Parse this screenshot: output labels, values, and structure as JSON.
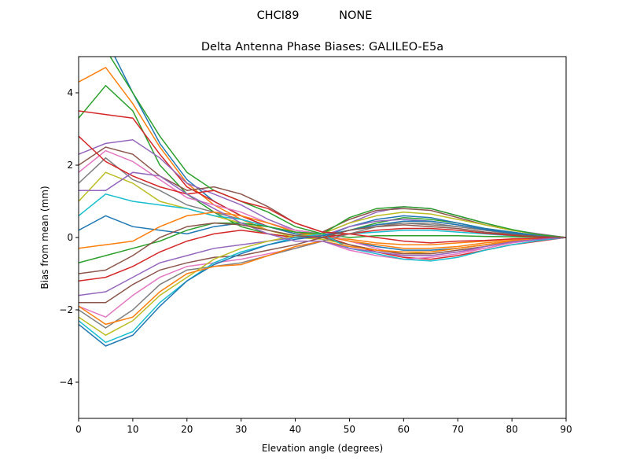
{
  "chart_data": {
    "type": "line",
    "suptitle": "CHCI89           NONE",
    "title": "Delta Antenna Phase Biases: GALILEO-E5a",
    "xlabel": "Elevation angle (degrees)",
    "ylabel": "Bias from mean (mm)",
    "xlim": [
      0,
      90
    ],
    "ylim": [
      -5,
      5
    ],
    "xticks": [
      0,
      10,
      20,
      30,
      40,
      50,
      60,
      70,
      80,
      90
    ],
    "yticks": [
      -4,
      -2,
      0,
      2,
      4
    ],
    "ytick_labels": [
      "−4",
      "−2",
      "0",
      "2",
      "4"
    ],
    "grid": false,
    "colors": [
      "#1f77b4",
      "#ff7f0e",
      "#2ca02c",
      "#d62728",
      "#9467bd",
      "#8c564b",
      "#e377c2",
      "#7f7f7f",
      "#bcbd22",
      "#17becf"
    ],
    "x": [
      0,
      5,
      10,
      15,
      20,
      25,
      30,
      35,
      40,
      45,
      50,
      55,
      60,
      65,
      70,
      75,
      80,
      85,
      90
    ],
    "series": [
      {
        "values": [
          6.5,
          5.5,
          4.0,
          2.6,
          1.6,
          1.0,
          0.6,
          0.3,
          0.1,
          0.05,
          -0.1,
          -0.25,
          -0.35,
          -0.35,
          -0.3,
          -0.2,
          -0.1,
          -0.05,
          0
        ]
      },
      {
        "values": [
          4.3,
          4.7,
          3.7,
          2.5,
          1.5,
          0.9,
          0.5,
          0.2,
          0.05,
          0.0,
          -0.05,
          -0.15,
          -0.2,
          -0.2,
          -0.15,
          -0.1,
          -0.05,
          -0.02,
          0
        ]
      },
      {
        "values": [
          3.3,
          4.2,
          3.5,
          2.0,
          1.2,
          0.7,
          0.3,
          0.1,
          0.0,
          0.05,
          0.2,
          0.4,
          0.55,
          0.5,
          0.4,
          0.25,
          0.15,
          0.05,
          0
        ]
      },
      {
        "values": [
          3.5,
          3.4,
          3.3,
          2.3,
          1.4,
          1.0,
          0.6,
          0.3,
          0.1,
          0.05,
          -0.2,
          -0.4,
          -0.55,
          -0.6,
          -0.5,
          -0.35,
          -0.2,
          -0.1,
          0
        ]
      },
      {
        "values": [
          2.3,
          2.6,
          2.7,
          2.2,
          1.5,
          1.2,
          0.9,
          0.5,
          0.2,
          0.1,
          0.4,
          0.7,
          0.85,
          0.8,
          0.6,
          0.4,
          0.2,
          0.1,
          0
        ]
      },
      {
        "values": [
          2.0,
          2.5,
          2.3,
          1.7,
          1.3,
          1.4,
          1.2,
          0.85,
          0.4,
          0.15,
          0.5,
          0.75,
          0.8,
          0.75,
          0.55,
          0.35,
          0.2,
          0.08,
          0
        ]
      },
      {
        "values": [
          1.8,
          2.4,
          2.1,
          1.6,
          1.1,
          0.9,
          0.7,
          0.4,
          0.2,
          0.1,
          -0.1,
          -0.3,
          -0.5,
          -0.5,
          -0.4,
          -0.3,
          -0.15,
          -0.05,
          0
        ]
      },
      {
        "values": [
          1.5,
          2.2,
          1.6,
          1.3,
          0.9,
          0.7,
          0.5,
          0.3,
          0.1,
          0.0,
          0.2,
          0.35,
          0.4,
          0.4,
          0.3,
          0.2,
          0.1,
          0.05,
          0
        ]
      },
      {
        "values": [
          1.0,
          1.8,
          1.5,
          1.0,
          0.8,
          0.6,
          0.4,
          0.2,
          0.0,
          -0.05,
          -0.2,
          -0.35,
          -0.45,
          -0.4,
          -0.3,
          -0.2,
          -0.1,
          -0.05,
          0
        ]
      },
      {
        "values": [
          0.6,
          1.2,
          1.0,
          0.9,
          0.8,
          0.6,
          0.5,
          0.3,
          0.15,
          0.1,
          0.1,
          0.15,
          0.2,
          0.2,
          0.15,
          0.1,
          0.05,
          0.02,
          0
        ]
      },
      {
        "values": [
          0.2,
          0.6,
          0.3,
          0.2,
          0.1,
          0.3,
          0.4,
          0.3,
          0.1,
          0.0,
          0.3,
          0.5,
          0.6,
          0.55,
          0.4,
          0.25,
          0.15,
          0.05,
          0
        ]
      },
      {
        "values": [
          -0.3,
          -0.2,
          -0.1,
          0.3,
          0.6,
          0.7,
          0.6,
          0.4,
          0.15,
          0.05,
          -0.1,
          -0.2,
          -0.3,
          -0.3,
          -0.25,
          -0.15,
          -0.08,
          -0.03,
          0
        ]
      },
      {
        "values": [
          -0.7,
          -0.5,
          -0.3,
          -0.1,
          0.2,
          0.4,
          0.4,
          0.3,
          0.15,
          0.1,
          0.0,
          0.05,
          0.05,
          0.05,
          0.05,
          0.03,
          0.02,
          0.01,
          0
        ]
      },
      {
        "values": [
          -1.2,
          -1.1,
          -0.8,
          -0.4,
          -0.1,
          0.1,
          0.2,
          0.1,
          0.0,
          0.0,
          0.1,
          0.2,
          0.25,
          0.25,
          0.2,
          0.12,
          0.06,
          0.02,
          0
        ]
      },
      {
        "values": [
          -1.6,
          -1.5,
          -1.1,
          -0.7,
          -0.5,
          -0.3,
          -0.2,
          -0.1,
          0.0,
          0.05,
          0.3,
          0.45,
          0.5,
          0.45,
          0.35,
          0.22,
          0.1,
          0.04,
          0
        ]
      },
      {
        "values": [
          -1.8,
          -1.8,
          -1.3,
          -0.9,
          -0.7,
          -0.55,
          -0.5,
          -0.35,
          -0.2,
          0.0,
          -0.2,
          -0.35,
          -0.45,
          -0.45,
          -0.35,
          -0.25,
          -0.12,
          -0.05,
          0
        ]
      },
      {
        "values": [
          -1.9,
          -2.2,
          -1.6,
          -1.1,
          -0.8,
          -0.7,
          -0.6,
          -0.45,
          -0.3,
          -0.1,
          -0.35,
          -0.5,
          -0.6,
          -0.55,
          -0.45,
          -0.3,
          -0.15,
          -0.05,
          0
        ]
      },
      {
        "values": [
          -2.0,
          -2.5,
          -2.0,
          -1.3,
          -0.9,
          -0.8,
          -0.7,
          -0.5,
          -0.3,
          -0.1,
          0.1,
          0.3,
          0.4,
          0.35,
          0.3,
          0.2,
          0.1,
          0.04,
          0
        ]
      },
      {
        "values": [
          -2.2,
          -2.7,
          -2.3,
          -1.6,
          -1.1,
          -0.6,
          -0.3,
          -0.1,
          0.05,
          0.1,
          0.4,
          0.6,
          0.7,
          0.65,
          0.5,
          0.35,
          0.2,
          0.08,
          0
        ]
      },
      {
        "values": [
          -2.3,
          -2.9,
          -2.6,
          -1.8,
          -1.2,
          -0.7,
          -0.4,
          -0.2,
          0.0,
          0.1,
          -0.3,
          -0.45,
          -0.6,
          -0.65,
          -0.55,
          -0.35,
          -0.2,
          -0.08,
          0
        ]
      },
      {
        "values": [
          -2.4,
          -3.0,
          -2.7,
          -1.9,
          -1.2,
          -0.75,
          -0.45,
          -0.2,
          -0.05,
          0.05,
          0.2,
          0.35,
          0.45,
          0.45,
          0.35,
          0.22,
          0.12,
          0.04,
          0
        ]
      },
      {
        "values": [
          -1.9,
          -2.4,
          -2.2,
          -1.5,
          -1.0,
          -0.8,
          -0.75,
          -0.5,
          -0.25,
          -0.1,
          -0.25,
          -0.35,
          -0.4,
          -0.4,
          -0.3,
          -0.2,
          -0.1,
          -0.04,
          0
        ]
      },
      {
        "values": [
          5.0,
          5.2,
          4.0,
          2.8,
          1.8,
          1.3,
          1.0,
          0.7,
          0.3,
          0.1,
          0.55,
          0.8,
          0.85,
          0.8,
          0.6,
          0.4,
          0.22,
          0.08,
          0
        ]
      },
      {
        "values": [
          2.8,
          2.1,
          1.7,
          1.4,
          1.2,
          1.3,
          1.0,
          0.8,
          0.4,
          0.15,
          0.1,
          0.0,
          -0.1,
          -0.15,
          -0.1,
          -0.08,
          -0.04,
          -0.02,
          0
        ]
      },
      {
        "values": [
          1.3,
          1.3,
          1.8,
          1.7,
          1.2,
          0.8,
          0.4,
          0.1,
          -0.1,
          -0.1,
          -0.3,
          -0.4,
          -0.5,
          -0.5,
          -0.4,
          -0.25,
          -0.12,
          -0.05,
          0
        ]
      },
      {
        "values": [
          -1.0,
          -0.9,
          -0.5,
          0.0,
          0.3,
          0.4,
          0.35,
          0.2,
          0.05,
          0.0,
          0.2,
          0.3,
          0.35,
          0.3,
          0.25,
          0.15,
          0.08,
          0.03,
          0
        ]
      }
    ]
  }
}
